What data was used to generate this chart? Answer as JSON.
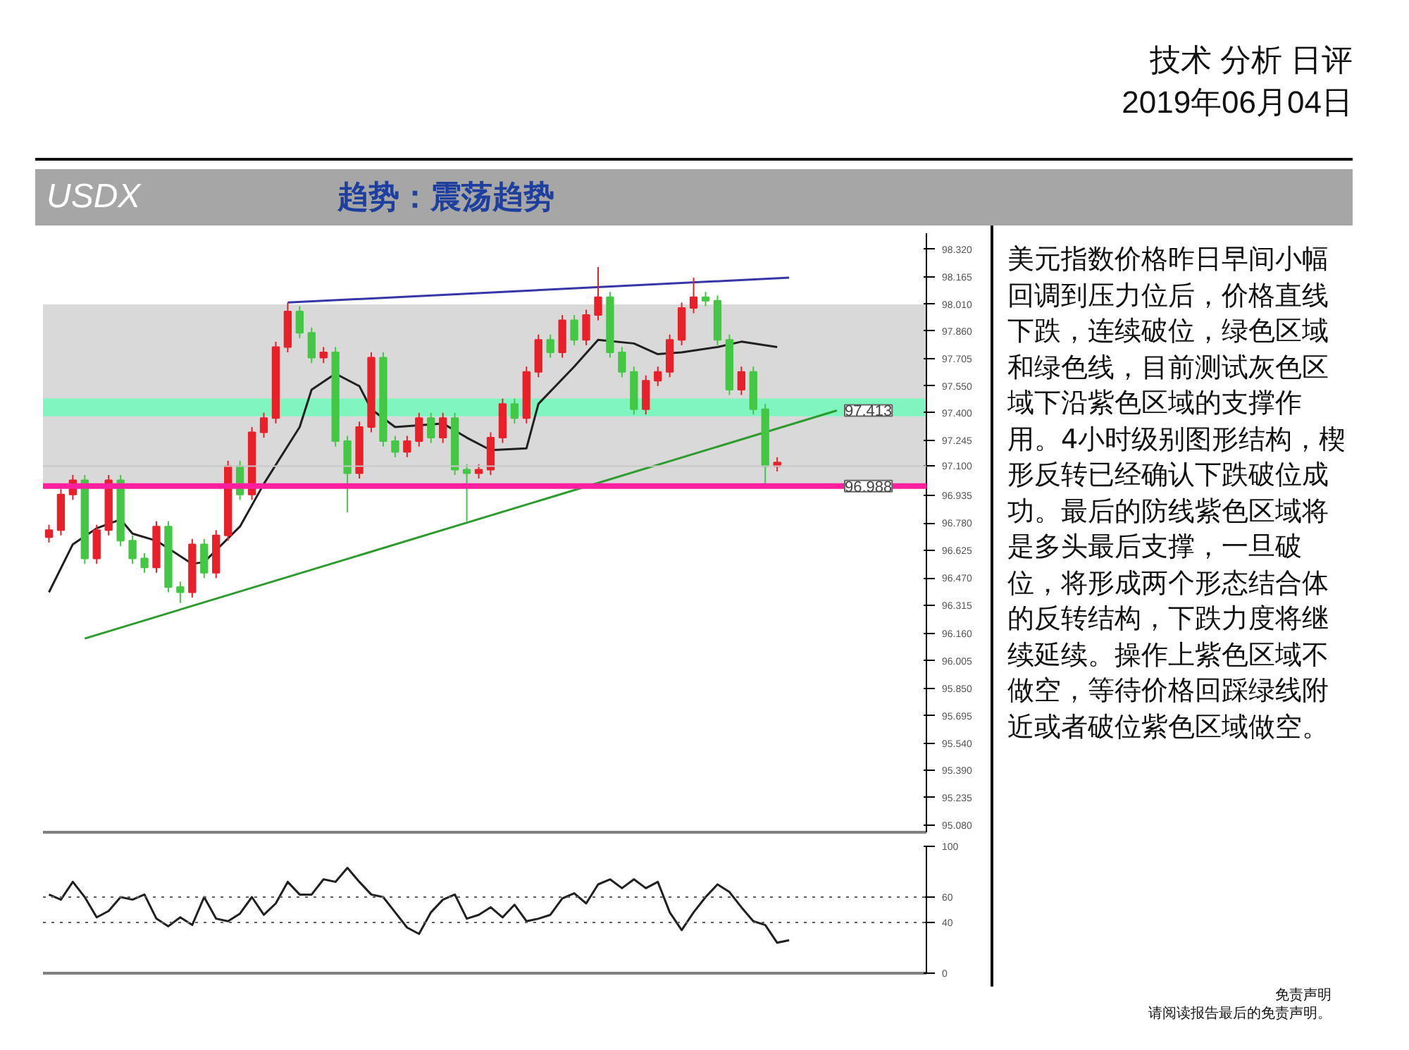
{
  "chart_data": [
    {
      "type": "candlestick",
      "title": "USDX",
      "subtitle": "趋势：震荡趋势",
      "categories": [
        null,
        null,
        null,
        null,
        null,
        null,
        null,
        null,
        null,
        null,
        null,
        null,
        null,
        null,
        null,
        null,
        null,
        null,
        null,
        null,
        null,
        null,
        null,
        null,
        null,
        null,
        null,
        null,
        null,
        null,
        null,
        null,
        null,
        null,
        null,
        null,
        null,
        null,
        null,
        null,
        null,
        null,
        null,
        null,
        null,
        null,
        null,
        null,
        null,
        null,
        null,
        null,
        null,
        null,
        null,
        null,
        null,
        null,
        null,
        null,
        null,
        null,
        null,
        null,
        null,
        null,
        null,
        null,
        null,
        null,
        null,
        null,
        null,
        null
      ],
      "ohlc": [
        [
          96.7,
          96.77,
          96.67,
          96.74
        ],
        [
          96.74,
          96.97,
          96.71,
          96.94
        ],
        [
          96.94,
          97.05,
          96.91,
          97.02
        ],
        [
          97.02,
          97.05,
          96.55,
          96.58
        ],
        [
          96.58,
          96.77,
          96.55,
          96.74
        ],
        [
          96.74,
          97.05,
          96.71,
          97.02
        ],
        [
          97.02,
          97.05,
          96.65,
          96.68
        ],
        [
          96.68,
          96.71,
          96.55,
          96.58
        ],
        [
          96.58,
          96.61,
          96.5,
          96.53
        ],
        [
          96.53,
          96.79,
          96.5,
          96.76
        ],
        [
          96.76,
          96.79,
          96.39,
          96.42
        ],
        [
          96.42,
          96.45,
          96.33,
          96.39
        ],
        [
          96.39,
          96.69,
          96.36,
          96.66
        ],
        [
          96.66,
          96.69,
          96.47,
          96.5
        ],
        [
          96.5,
          96.74,
          96.47,
          96.71
        ],
        [
          96.71,
          97.13,
          96.68,
          97.1
        ],
        [
          97.1,
          97.13,
          96.91,
          96.94
        ],
        [
          96.94,
          97.32,
          96.91,
          97.29
        ],
        [
          97.29,
          97.4,
          97.26,
          97.37
        ],
        [
          97.37,
          97.8,
          97.34,
          97.77
        ],
        [
          97.77,
          98.02,
          97.74,
          97.97
        ],
        [
          97.97,
          98.0,
          97.82,
          97.85
        ],
        [
          97.85,
          97.88,
          97.68,
          97.71
        ],
        [
          97.71,
          97.77,
          97.68,
          97.74
        ],
        [
          97.74,
          97.77,
          97.21,
          97.24
        ],
        [
          97.24,
          97.27,
          96.84,
          97.06
        ],
        [
          97.06,
          97.35,
          97.03,
          97.32
        ],
        [
          97.32,
          97.74,
          97.29,
          97.71
        ],
        [
          97.71,
          97.74,
          97.21,
          97.24
        ],
        [
          97.24,
          97.27,
          97.15,
          97.18
        ],
        [
          97.18,
          97.27,
          97.15,
          97.24
        ],
        [
          97.24,
          97.4,
          97.21,
          97.37
        ],
        [
          97.37,
          97.4,
          97.23,
          97.26
        ],
        [
          97.26,
          97.4,
          97.23,
          97.37
        ],
        [
          97.37,
          97.4,
          97.05,
          97.08
        ],
        [
          97.08,
          97.11,
          96.79,
          97.06
        ],
        [
          97.06,
          97.11,
          97.03,
          97.08
        ],
        [
          97.08,
          97.29,
          97.05,
          97.26
        ],
        [
          97.26,
          97.48,
          97.23,
          97.45
        ],
        [
          97.45,
          97.48,
          97.34,
          97.37
        ],
        [
          97.37,
          97.66,
          97.34,
          97.63
        ],
        [
          97.63,
          97.84,
          97.6,
          97.81
        ],
        [
          97.81,
          97.84,
          97.71,
          97.74
        ],
        [
          97.74,
          97.95,
          97.71,
          97.92
        ],
        [
          97.92,
          97.95,
          97.78,
          97.81
        ],
        [
          97.81,
          97.98,
          97.78,
          97.95
        ],
        [
          97.95,
          98.22,
          97.92,
          98.05
        ],
        [
          98.05,
          98.08,
          97.71,
          97.74
        ],
        [
          97.74,
          97.77,
          97.6,
          97.63
        ],
        [
          97.63,
          97.66,
          97.39,
          97.42
        ],
        [
          97.42,
          97.61,
          97.39,
          97.58
        ],
        [
          97.58,
          97.66,
          97.55,
          97.63
        ],
        [
          97.63,
          97.84,
          97.6,
          97.81
        ],
        [
          97.81,
          98.02,
          97.78,
          97.99
        ],
        [
          97.99,
          98.16,
          97.96,
          98.05
        ],
        [
          98.05,
          98.08,
          98.0,
          98.03
        ],
        [
          98.03,
          98.06,
          97.78,
          97.81
        ],
        [
          97.81,
          97.84,
          97.5,
          97.53
        ],
        [
          97.53,
          97.66,
          97.5,
          97.63
        ],
        [
          97.63,
          97.66,
          97.39,
          97.42
        ],
        [
          97.42,
          97.45,
          96.98,
          97.1
        ],
        [
          97.1,
          97.15,
          97.07,
          97.12
        ],
        null,
        null,
        null,
        null,
        null,
        null,
        null,
        null,
        null,
        null,
        null,
        null
      ],
      "colors": [
        "#e8202a",
        "#e8202a",
        "#e8202a",
        "#44c744",
        "#e8202a",
        "#e8202a",
        "#44c744",
        "#44c744",
        "#44c744",
        "#e8202a",
        "#44c744",
        "#44c744",
        "#e8202a",
        "#44c744",
        "#e8202a",
        "#e8202a",
        "#44c744",
        "#e8202a",
        "#e8202a",
        "#e8202a",
        "#e8202a",
        "#44c744",
        "#44c744",
        "#e8202a",
        "#44c744",
        "#44c744",
        "#e8202a",
        "#e8202a",
        "#44c744",
        "#44c744",
        "#e8202a",
        "#e8202a",
        "#44c744",
        "#e8202a",
        "#44c744",
        "#44c744",
        "#e8202a",
        "#e8202a",
        "#e8202a",
        "#44c744",
        "#e8202a",
        "#e8202a",
        "#44c744",
        "#e8202a",
        "#44c744",
        "#e8202a",
        "#e8202a",
        "#44c744",
        "#44c744",
        "#44c744",
        "#e8202a",
        "#e8202a",
        "#e8202a",
        "#e8202a",
        "#e8202a",
        "#44c744",
        "#44c744",
        "#44c744",
        "#e8202a",
        "#44c744",
        "#44c744",
        "#e8202a",
        null,
        null,
        null,
        null,
        null,
        null,
        null,
        null,
        null,
        null,
        null,
        null
      ],
      "series": [
        {
          "type": "line",
          "color": "#202020",
          "values": [
            96.39,
            null,
            96.66,
            null,
            96.75,
            null,
            96.8,
            96.72,
            null,
            96.68,
            null,
            null,
            96.55,
            96.56,
            null,
            null,
            96.76,
            null,
            97.0,
            null,
            null,
            97.32,
            97.53,
            null,
            97.62,
            null,
            97.55,
            97.42,
            null,
            97.32,
            null,
            null,
            null,
            97.34,
            null,
            97.26,
            null,
            97.19,
            null,
            null,
            97.2,
            97.45,
            null,
            null,
            97.66,
            null,
            97.81,
            null,
            null,
            97.79,
            null,
            97.73,
            null,
            97.74,
            null,
            null,
            97.77,
            null,
            97.8,
            null,
            null,
            97.77,
            null,
            null,
            null,
            null,
            null,
            null,
            null,
            null,
            null,
            null,
            null,
            null
          ]
        },
        {
          "type": "line",
          "color": "#2e9b2e",
          "values": [
            null,
            null,
            null,
            96.13,
            null,
            null,
            null,
            null,
            null,
            null,
            null,
            null,
            null,
            null,
            null,
            null,
            null,
            null,
            null,
            null,
            null,
            null,
            null,
            null,
            null,
            null,
            null,
            null,
            null,
            null,
            null,
            null,
            null,
            null,
            null,
            null,
            null,
            null,
            null,
            null,
            null,
            null,
            null,
            null,
            null,
            null,
            null,
            null,
            null,
            null,
            null,
            null,
            null,
            null,
            null,
            null,
            null,
            null,
            null,
            null,
            null,
            null,
            null,
            null,
            null,
            null,
            97.413,
            null,
            null,
            null,
            null,
            null,
            null,
            null
          ]
        },
        {
          "type": "line",
          "color": "#3636a8",
          "values": [
            null,
            null,
            null,
            null,
            null,
            null,
            null,
            null,
            null,
            null,
            null,
            null,
            null,
            null,
            null,
            null,
            null,
            null,
            null,
            null,
            98.02,
            null,
            null,
            null,
            null,
            null,
            null,
            null,
            null,
            null,
            null,
            null,
            null,
            null,
            null,
            null,
            null,
            null,
            null,
            null,
            null,
            null,
            null,
            null,
            null,
            null,
            null,
            null,
            null,
            null,
            null,
            null,
            null,
            null,
            null,
            null,
            null,
            null,
            null,
            null,
            null,
            null,
            98.16,
            null,
            null,
            null,
            null,
            null,
            null,
            null,
            null,
            null,
            null,
            null
          ]
        }
      ],
      "ylim": [
        95.04,
        98.41
      ],
      "yticks": [
        {
          "value": 95.08,
          "label": "95.080"
        },
        {
          "value": 95.235,
          "label": "95.235"
        },
        {
          "value": 95.39,
          "label": "95.390"
        },
        {
          "value": 95.54,
          "label": "95.540"
        },
        {
          "value": 95.695,
          "label": "95.695"
        },
        {
          "value": 95.85,
          "label": "95.850"
        },
        {
          "value": 96.005,
          "label": "96.005"
        },
        {
          "value": 96.16,
          "label": "96.160"
        },
        {
          "value": 96.315,
          "label": "96.315"
        },
        {
          "value": 96.47,
          "label": "96.470"
        },
        {
          "value": 96.625,
          "label": "96.625"
        },
        {
          "value": 96.78,
          "label": "96.780"
        },
        {
          "value": 96.935,
          "label": "96.935"
        },
        {
          "value": 97.1,
          "label": "97.100"
        },
        {
          "value": 97.245,
          "label": "97.245"
        },
        {
          "value": 97.4,
          "label": "97.400"
        },
        {
          "value": 97.55,
          "label": "97.550"
        },
        {
          "value": 97.705,
          "label": "97.705"
        },
        {
          "value": 97.86,
          "label": "97.860"
        },
        {
          "value": 98.01,
          "label": "98.010"
        },
        {
          "value": 98.165,
          "label": "98.165"
        },
        {
          "value": 98.32,
          "label": "98.320"
        }
      ],
      "bands": [
        {
          "axis": "y",
          "from": 96.988,
          "to": 98.01,
          "color": "#d9d9d9"
        },
        {
          "axis": "y",
          "from": 97.38,
          "to": 97.48,
          "color": "#80f5c0"
        }
      ],
      "ref_lines": [
        {
          "axis": "y",
          "value": 97.1,
          "color": "#c8c8c8"
        },
        {
          "axis": "y",
          "value": 96.988,
          "label": "96.988",
          "color": "#ff1f9f"
        }
      ],
      "annotations": [
        {
          "text": "97.413",
          "y": 97.413
        }
      ],
      "grid": false,
      "tick_labels": "y"
    },
    {
      "type": "line",
      "categories": [
        null,
        null,
        null,
        null,
        null,
        null,
        null,
        null,
        null,
        null,
        null,
        null,
        null,
        null,
        null,
        null,
        null,
        null,
        null,
        null,
        null,
        null,
        null,
        null,
        null,
        null,
        null,
        null,
        null,
        null,
        null,
        null,
        null,
        null,
        null,
        null,
        null,
        null,
        null,
        null,
        null,
        null,
        null,
        null,
        null,
        null,
        null,
        null,
        null,
        null,
        null,
        null,
        null,
        null,
        null,
        null,
        null,
        null,
        null,
        null,
        null,
        null,
        null,
        null,
        null,
        null,
        null,
        null,
        null,
        null,
        null,
        null,
        null,
        null
      ],
      "series": [
        {
          "color": "#202020",
          "values": [
            62,
            58,
            72,
            60,
            44,
            49,
            60,
            58,
            62,
            43,
            37,
            44,
            38,
            60,
            43,
            41,
            47,
            60,
            46,
            55,
            72,
            62,
            62,
            74,
            72,
            83,
            72,
            62,
            60,
            48,
            36,
            31,
            48,
            58,
            62,
            43,
            46,
            52,
            44,
            54,
            41,
            43,
            46,
            59,
            63,
            55,
            70,
            74,
            67,
            74,
            67,
            72,
            48,
            34,
            48,
            60,
            70,
            64,
            52,
            41,
            38,
            24,
            26,
            null,
            null,
            null,
            null,
            null,
            null,
            null,
            null,
            null,
            null,
            null
          ]
        }
      ],
      "ylim": [
        0,
        100
      ],
      "yticks": [
        0,
        40,
        60,
        100
      ],
      "ref_lines": [
        {
          "axis": "y",
          "value": 60,
          "color": "#606060",
          "line_style": "dotted"
        },
        {
          "axis": "y",
          "value": 40,
          "color": "#606060",
          "line_style": "dotted"
        }
      ],
      "grid": false,
      "tick_labels": "y"
    },
    {
      "type": "other",
      "title": "技术 分析 日评",
      "subtitle": "2019年06月04日",
      "annotations": [
        "美元指数价格昨日早间小幅回调到压力位后，价格直线下跌，连续破位，绿色区域和绿色线，目前测试灰色区域下沿紫色区域的支撑作用。4小时级别图形结构，楔形反转已经确认下跌破位成功。最后的防线紫色区域将是多头最后支撑，一旦破位，将形成两个形态结合体的反转结构，下跌力度将继续延续。操作上紫色区域不做空，等待价格回踩绿线附近或者破位紫色区域做空。",
        "免责声明",
        "请阅读报告最后的免责声明。"
      ]
    }
  ]
}
